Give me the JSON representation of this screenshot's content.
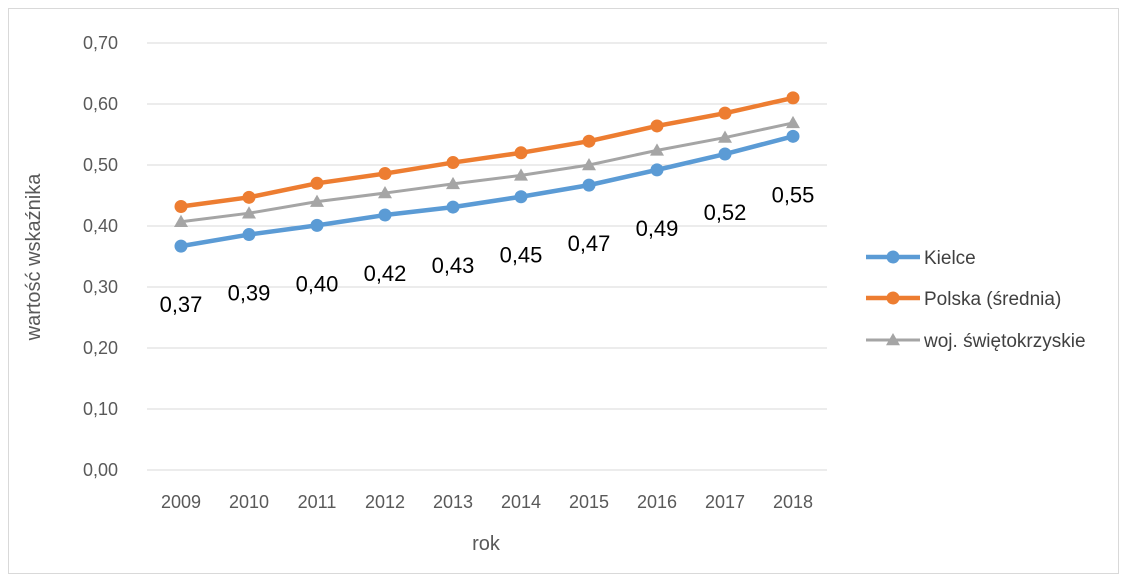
{
  "chart_data": {
    "type": "line",
    "title": "",
    "xlabel": "rok",
    "ylabel": "wartość wskaźnika",
    "ylim": [
      0,
      0.7
    ],
    "yticks": [
      "0,00",
      "0,10",
      "0,20",
      "0,30",
      "0,40",
      "0,50",
      "0,60",
      "0,70"
    ],
    "categories": [
      "2009",
      "2010",
      "2011",
      "2012",
      "2013",
      "2014",
      "2015",
      "2016",
      "2017",
      "2018"
    ],
    "grid": "horizontal",
    "legend_position": "right",
    "series": [
      {
        "name": "Kielce",
        "color": "#5b9bd5",
        "marker": "circle",
        "values": [
          0.367,
          0.386,
          0.401,
          0.418,
          0.431,
          0.448,
          0.467,
          0.492,
          0.518,
          0.547
        ],
        "data_labels": [
          "0,37",
          "0,39",
          "0,40",
          "0,42",
          "0,43",
          "0,45",
          "0,47",
          "0,49",
          "0,52",
          "0,55"
        ]
      },
      {
        "name": "Polska (średnia)",
        "color": "#ed7d31",
        "marker": "circle",
        "values": [
          0.432,
          0.447,
          0.47,
          0.486,
          0.504,
          0.52,
          0.539,
          0.564,
          0.585,
          0.61
        ]
      },
      {
        "name": "woj. świętokrzyskie",
        "color": "#a5a5a5",
        "marker": "triangle",
        "values": [
          0.407,
          0.421,
          0.44,
          0.454,
          0.469,
          0.483,
          0.5,
          0.524,
          0.545,
          0.569
        ]
      }
    ]
  }
}
